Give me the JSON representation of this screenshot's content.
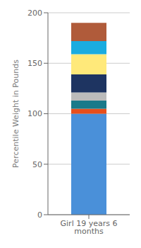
{
  "chart_data": {
    "type": "bar",
    "stacked": true,
    "categories": [
      "Girl 19 years 6 months"
    ],
    "series": [
      {
        "color": "#4A90D9",
        "values": [
          100
        ]
      },
      {
        "color": "#E84E1B",
        "values": [
          5
        ]
      },
      {
        "color": "#1A7A8A",
        "values": [
          8
        ]
      },
      {
        "color": "#BBBBBB",
        "values": [
          8
        ]
      },
      {
        "color": "#1E3461",
        "values": [
          18
        ]
      },
      {
        "color": "#FFE97A",
        "values": [
          20
        ]
      },
      {
        "color": "#1AACE0",
        "values": [
          13
        ]
      },
      {
        "color": "#B05B3A",
        "values": [
          18
        ]
      }
    ],
    "y_label": "Percentile Weight in Pounds",
    "ylim": [
      0,
      200
    ],
    "yticks": [
      0,
      50,
      100,
      150,
      200
    ],
    "grid": true
  }
}
